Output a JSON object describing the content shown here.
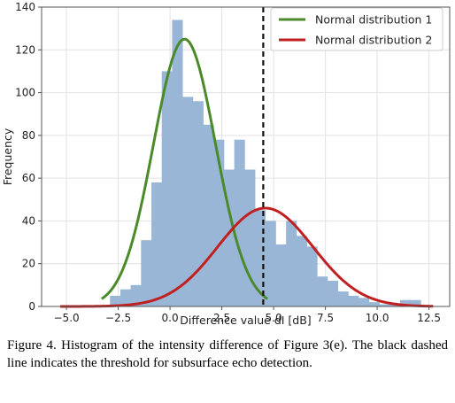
{
  "chart_data": {
    "type": "bar",
    "title": "",
    "xlabel": "Difference value dI [dB]",
    "ylabel": "Frequency",
    "xlim": [
      -6.2,
      13.5
    ],
    "ylim": [
      0,
      140
    ],
    "xticks": [
      -5.0,
      -2.5,
      0.0,
      2.5,
      5.0,
      7.5,
      10.0,
      12.5
    ],
    "xtick_labels": [
      "−5.0",
      "−2.5",
      "0.0",
      "2.5",
      "5.0",
      "7.5",
      "10.0",
      "12.5"
    ],
    "yticks": [
      0,
      20,
      40,
      60,
      80,
      100,
      120,
      140
    ],
    "ytick_labels": [
      "0",
      "20",
      "40",
      "60",
      "80",
      "100",
      "120",
      "140"
    ],
    "grid": true,
    "histogram": {
      "bin_edges": [
        -2.9,
        -2.4,
        -1.9,
        -1.4,
        -0.9,
        -0.4,
        0.1,
        0.6,
        1.1,
        1.6,
        2.1,
        2.6,
        3.1,
        3.6,
        4.1,
        4.6,
        5.1,
        5.6,
        6.1,
        6.6,
        7.1,
        7.6,
        8.1,
        8.6,
        9.1,
        9.6,
        10.1,
        10.6,
        11.1,
        11.6,
        12.1
      ],
      "counts": [
        5,
        8,
        10,
        31,
        58,
        110,
        134,
        98,
        96,
        85,
        78,
        64,
        78,
        64,
        45,
        40,
        29,
        40,
        33,
        28,
        14,
        12,
        7,
        5,
        4,
        2,
        1,
        1,
        3,
        3
      ],
      "color": "#9ab6d6"
    },
    "series": [
      {
        "name": "Normal distribution 1",
        "type": "normal",
        "mean": 0.7,
        "std": 1.5,
        "peak": 125,
        "color": "#4a8a2a",
        "x_range": [
          -3.3,
          4.7
        ]
      },
      {
        "name": "Normal distribution 2",
        "type": "normal",
        "mean": 4.6,
        "std": 2.3,
        "peak": 46,
        "color": "#c02020",
        "x_range": [
          -5.3,
          12.7
        ]
      }
    ],
    "threshold": {
      "x": 4.5,
      "style": "dashed",
      "color": "#111111"
    },
    "legend_position": "top-right"
  },
  "caption": "Figure 4. Histogram of the intensity difference of Figure 3(e). The black dashed line indicates the threshold for subsurface echo detection."
}
